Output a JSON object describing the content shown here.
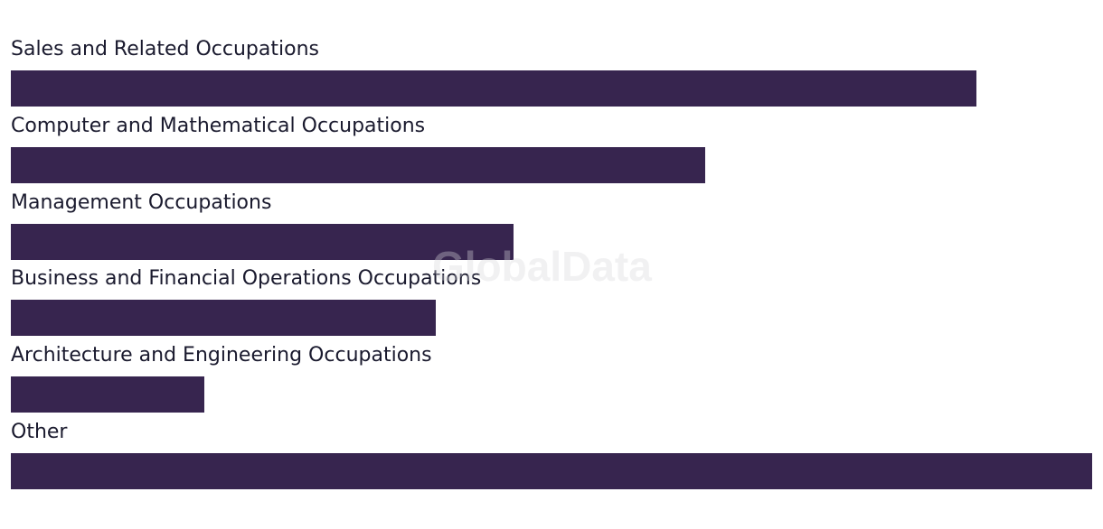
{
  "chart_data": {
    "type": "bar",
    "orientation": "horizontal",
    "categories": [
      "Sales and Related Occupations",
      "Computer and Mathematical Occupations",
      "Management Occupations",
      "Business and Financial Operations Occupations",
      "Architecture and Engineering Occupations",
      "Other"
    ],
    "values": [
      89.3,
      64.2,
      46.5,
      39.3,
      17.9,
      100
    ],
    "value_scale": "relative to Other = 100 (no axis shown)",
    "bar_color": "#37254f",
    "grid": false,
    "legend": "none"
  },
  "watermark": "GlobalData"
}
